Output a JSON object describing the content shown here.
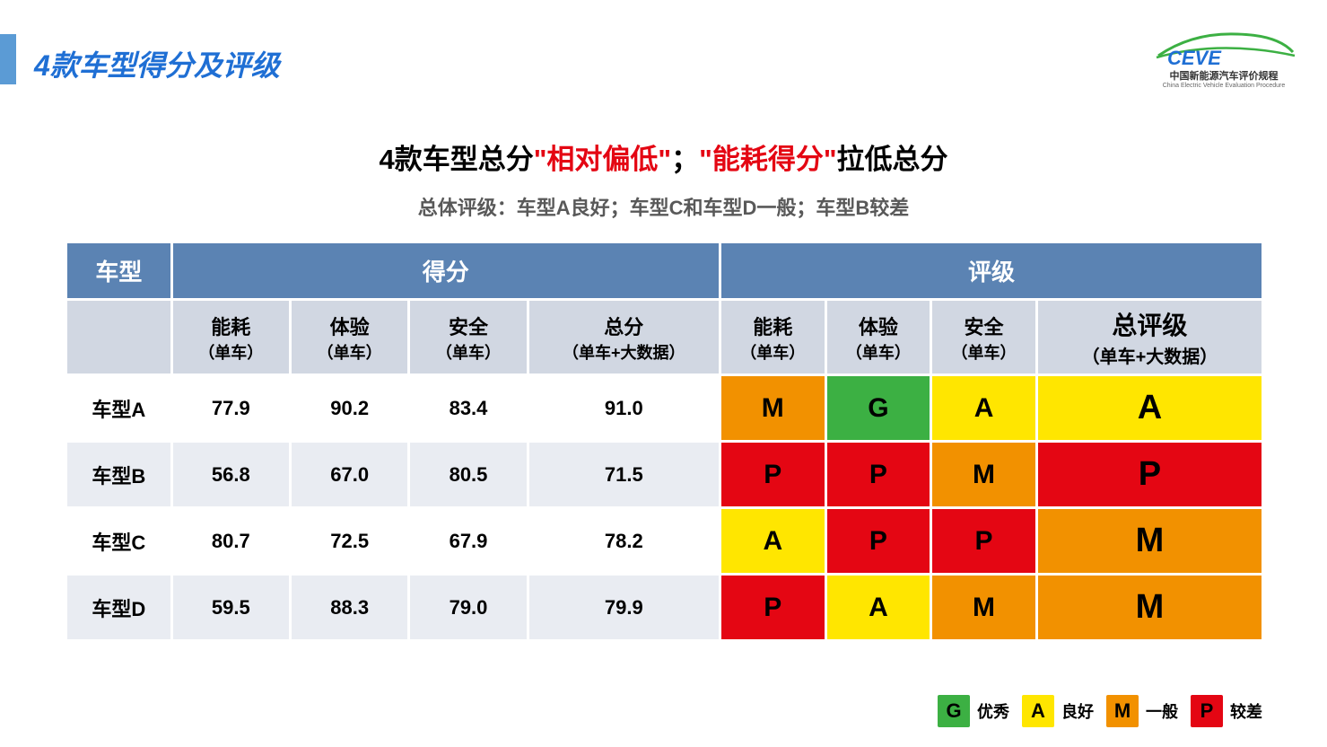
{
  "colors": {
    "accent_blue": "#1f6fd4",
    "header_blue": "#5b83b3",
    "sub_header_bg": "#d1d7e2",
    "alt_row_bg": "#e9ecf2",
    "red_text": "#e40613",
    "rating_G": "#3cb043",
    "rating_A": "#ffe600",
    "rating_M": "#f29100",
    "rating_P": "#e40613"
  },
  "slide_title": "4款车型得分及评级",
  "logo": {
    "brand": "CEVE",
    "tagline": "中国新能源汽车评价规程",
    "sub": "China Electric Vehicle Evaluation Procedure"
  },
  "headline": {
    "p1": "4款车型总分",
    "p2_red": "\"相对偏低\"",
    "p3": "；",
    "p4_red": "\"能耗得分\"",
    "p5": "拉低总分"
  },
  "sub_headline": "总体评级：车型A良好；车型C和车型D一般；车型B较差",
  "table": {
    "primary_headers": {
      "model": "车型",
      "score": "得分",
      "rating": "评级"
    },
    "sub_headers": {
      "energy": {
        "l1": "能耗",
        "l2": "（单车）"
      },
      "exp": {
        "l1": "体验",
        "l2": "（单车）"
      },
      "safety": {
        "l1": "安全",
        "l2": "（单车）"
      },
      "total_s": {
        "l1": "总分",
        "l2": "（单车+大数据）"
      },
      "r_energy": {
        "l1": "能耗",
        "l2": "（单车）"
      },
      "r_exp": {
        "l1": "体验",
        "l2": "（单车）"
      },
      "r_safety": {
        "l1": "安全",
        "l2": "（单车）"
      },
      "r_total": {
        "l1": "总评级",
        "l2": "（单车+大数据）"
      }
    },
    "rows": [
      {
        "model": "车型A",
        "scores": [
          "77.9",
          "90.2",
          "83.4",
          "91.0"
        ],
        "ratings": [
          "M",
          "G",
          "A",
          "A"
        ]
      },
      {
        "model": "车型B",
        "scores": [
          "56.8",
          "67.0",
          "80.5",
          "71.5"
        ],
        "ratings": [
          "P",
          "P",
          "M",
          "P"
        ]
      },
      {
        "model": "车型C",
        "scores": [
          "80.7",
          "72.5",
          "67.9",
          "78.2"
        ],
        "ratings": [
          "A",
          "P",
          "P",
          "M"
        ]
      },
      {
        "model": "车型D",
        "scores": [
          "59.5",
          "88.3",
          "79.0",
          "79.9"
        ],
        "ratings": [
          "P",
          "A",
          "M",
          "M"
        ]
      }
    ]
  },
  "legend": [
    {
      "code": "G",
      "label": "优秀"
    },
    {
      "code": "A",
      "label": "良好"
    },
    {
      "code": "M",
      "label": "一般"
    },
    {
      "code": "P",
      "label": "较差"
    }
  ]
}
